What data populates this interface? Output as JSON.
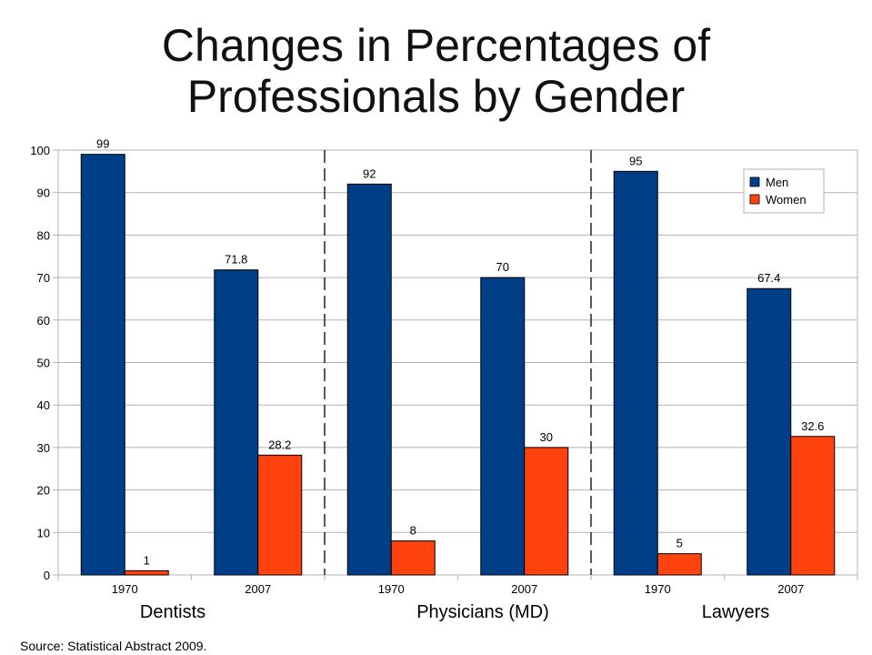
{
  "title_line1": "Changes in Percentages of",
  "title_line2": "Professionals by Gender",
  "source": "Source: Statistical Abstract 2009.",
  "colors": {
    "men": "#003f87",
    "women": "#ff420e",
    "grid": "#b3b3b3",
    "divider": "#000000"
  },
  "chart_data": {
    "type": "bar",
    "title": "Changes in Percentages of Professionals by Gender",
    "groups": [
      "Dentists",
      "Physicians (MD)",
      "Lawyers"
    ],
    "categories": [
      "1970",
      "2007",
      "1970",
      "2007",
      "1970",
      "2007"
    ],
    "group_of_category": [
      0,
      0,
      1,
      1,
      2,
      2
    ],
    "series": [
      {
        "name": "Men",
        "values": [
          99,
          71.8,
          92,
          70,
          95,
          67.4
        ]
      },
      {
        "name": "Women",
        "values": [
          1,
          28.2,
          8,
          30,
          5,
          32.6
        ]
      }
    ],
    "data_labels": [
      [
        "99",
        "71.8",
        "92",
        "70",
        "95",
        "67.4"
      ],
      [
        "1",
        "28.2",
        "8",
        "30",
        "5",
        "32.6"
      ]
    ],
    "yticks": [
      "0",
      "10",
      "20",
      "30",
      "40",
      "50",
      "60",
      "70",
      "80",
      "90",
      "100"
    ],
    "ylim": [
      0,
      100
    ],
    "grid": true,
    "legend_position": "top-right"
  }
}
